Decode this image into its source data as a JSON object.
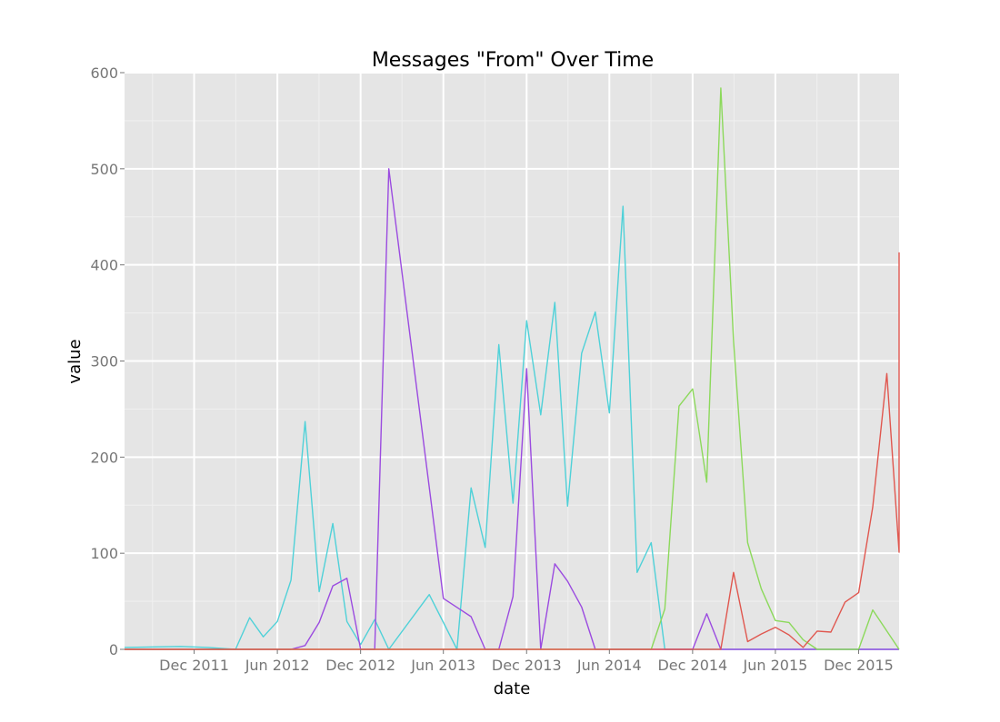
{
  "chart_data": {
    "type": "line",
    "title": "Messages \"From\" Over Time",
    "xlabel": "date",
    "ylabel": "value",
    "ylim": [
      0,
      600
    ],
    "xlim": [
      "2011-07-01",
      "2016-02-28"
    ],
    "grid": true,
    "x_ticks": [
      {
        "date": "2011-12-01",
        "label": "Dec 2011"
      },
      {
        "date": "2012-06-01",
        "label": "Jun 2012"
      },
      {
        "date": "2012-12-01",
        "label": "Dec 2012"
      },
      {
        "date": "2013-06-01",
        "label": "Jun 2013"
      },
      {
        "date": "2013-12-01",
        "label": "Dec 2013"
      },
      {
        "date": "2014-06-01",
        "label": "Jun 2014"
      },
      {
        "date": "2014-12-01",
        "label": "Dec 2014"
      },
      {
        "date": "2015-06-01",
        "label": "Jun 2015"
      },
      {
        "date": "2015-12-01",
        "label": "Dec 2015"
      }
    ],
    "y_ticks": [
      {
        "value": 0,
        "label": "0"
      },
      {
        "value": 100,
        "label": "100"
      },
      {
        "value": 200,
        "label": "200"
      },
      {
        "value": 300,
        "label": "300"
      },
      {
        "value": 400,
        "label": "400"
      },
      {
        "value": 500,
        "label": "500"
      },
      {
        "value": 600,
        "label": "600"
      }
    ],
    "series": [
      {
        "color": "#4fd1d8",
        "points": [
          [
            "2011-07-01",
            2
          ],
          [
            "2011-11-01",
            3
          ],
          [
            "2012-01-01",
            2
          ],
          [
            "2012-03-01",
            0
          ],
          [
            "2012-04-01",
            33
          ],
          [
            "2012-05-01",
            13
          ],
          [
            "2012-06-01",
            29
          ],
          [
            "2012-07-01",
            72
          ],
          [
            "2012-08-01",
            237
          ],
          [
            "2012-09-01",
            60
          ],
          [
            "2012-10-01",
            131
          ],
          [
            "2012-11-01",
            29
          ],
          [
            "2012-12-01",
            5
          ],
          [
            "2013-01-01",
            31
          ],
          [
            "2013-02-01",
            0
          ],
          [
            "2013-05-01",
            57
          ],
          [
            "2013-07-01",
            0
          ],
          [
            "2013-08-01",
            168
          ],
          [
            "2013-09-01",
            106
          ],
          [
            "2013-10-01",
            317
          ],
          [
            "2013-11-01",
            152
          ],
          [
            "2013-12-01",
            342
          ],
          [
            "2014-01-01",
            244
          ],
          [
            "2014-02-01",
            361
          ],
          [
            "2014-03-01",
            149
          ],
          [
            "2014-04-01",
            308
          ],
          [
            "2014-05-01",
            351
          ],
          [
            "2014-06-01",
            246
          ],
          [
            "2014-07-01",
            461
          ],
          [
            "2014-08-01",
            80
          ],
          [
            "2014-09-01",
            111
          ],
          [
            "2014-10-01",
            0
          ],
          [
            "2016-02-28",
            0
          ]
        ]
      },
      {
        "color": "#9b4be0",
        "points": [
          [
            "2011-07-01",
            0
          ],
          [
            "2012-07-01",
            0
          ],
          [
            "2012-08-01",
            4
          ],
          [
            "2012-09-01",
            28
          ],
          [
            "2012-10-01",
            66
          ],
          [
            "2012-11-01",
            74
          ],
          [
            "2012-12-01",
            0
          ],
          [
            "2013-01-01",
            0
          ],
          [
            "2013-02-01",
            500
          ],
          [
            "2013-06-01",
            53
          ],
          [
            "2013-08-01",
            34
          ],
          [
            "2013-09-01",
            0
          ],
          [
            "2013-10-01",
            0
          ],
          [
            "2013-11-01",
            55
          ],
          [
            "2013-12-01",
            292
          ],
          [
            "2014-01-01",
            0
          ],
          [
            "2014-02-01",
            89
          ],
          [
            "2014-03-01",
            71
          ],
          [
            "2014-04-01",
            44
          ],
          [
            "2014-05-01",
            0
          ],
          [
            "2014-12-01",
            0
          ],
          [
            "2015-01-01",
            37
          ],
          [
            "2015-02-01",
            0
          ],
          [
            "2016-02-28",
            0
          ]
        ]
      },
      {
        "color": "#8cd95b",
        "points": [
          [
            "2011-07-01",
            0
          ],
          [
            "2014-09-01",
            0
          ],
          [
            "2014-10-01",
            42
          ],
          [
            "2014-11-01",
            253
          ],
          [
            "2014-12-01",
            271
          ],
          [
            "2015-01-01",
            174
          ],
          [
            "2015-02-01",
            584
          ],
          [
            "2015-03-01",
            321
          ],
          [
            "2015-04-01",
            111
          ],
          [
            "2015-05-01",
            63
          ],
          [
            "2015-06-01",
            30
          ],
          [
            "2015-07-01",
            28
          ],
          [
            "2015-08-01",
            10
          ],
          [
            "2015-09-01",
            0
          ],
          [
            "2015-12-01",
            0
          ],
          [
            "2016-01-01",
            41
          ],
          [
            "2016-02-28",
            0
          ]
        ]
      },
      {
        "color": "#e0574f",
        "points": [
          [
            "2011-07-01",
            0
          ],
          [
            "2015-01-01",
            0
          ],
          [
            "2015-02-01",
            0
          ],
          [
            "2015-03-01",
            80
          ],
          [
            "2015-04-01",
            8
          ],
          [
            "2015-05-01",
            16
          ],
          [
            "2015-06-01",
            23
          ],
          [
            "2015-07-01",
            15
          ],
          [
            "2015-08-01",
            2
          ],
          [
            "2015-09-01",
            19
          ],
          [
            "2015-10-01",
            18
          ],
          [
            "2015-11-01",
            49
          ],
          [
            "2015-12-01",
            59
          ],
          [
            "2016-01-01",
            148
          ],
          [
            "2016-02-01",
            287
          ],
          [
            "2016-03-01",
            101
          ],
          [
            "2016-04-01",
            413
          ]
        ]
      }
    ]
  }
}
